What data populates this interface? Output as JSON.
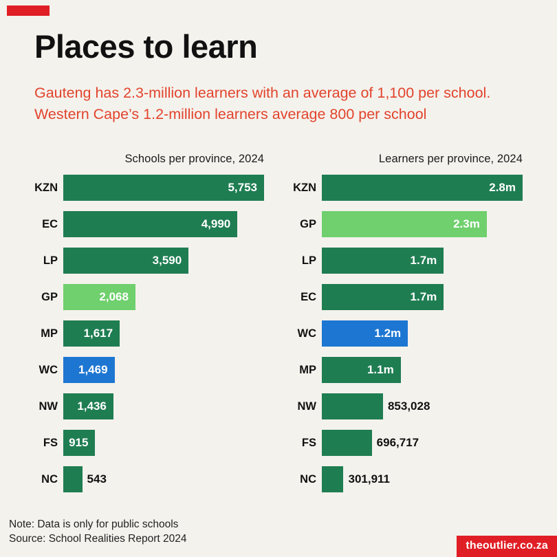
{
  "page": {
    "background": "#f4f2ed",
    "brand_red": "#e01e25",
    "subtitle_red": "#e2432c",
    "bar_green": "#1f7d52",
    "bar_light_green": "#6fd06d",
    "bar_blue": "#1d76d2"
  },
  "header": {
    "title": "Places to learn",
    "subtitle": "Gauteng has 2.3-million learners with an average of 1,100 per school. Western Cape’s 1.2-million learners average 800 per school"
  },
  "chart_data": [
    {
      "type": "bar",
      "orientation": "horizontal",
      "title": "Schools per province, 2024",
      "categories": [
        "KZN",
        "EC",
        "LP",
        "GP",
        "MP",
        "WC",
        "NW",
        "FS",
        "NC"
      ],
      "values": [
        5753,
        4990,
        3590,
        2068,
        1617,
        1469,
        1436,
        915,
        543
      ],
      "labels": [
        "5,753",
        "4,990",
        "3,590",
        "2,068",
        "1,617",
        "1,469",
        "1,436",
        "915",
        "543"
      ],
      "colors": [
        "#1f7d52",
        "#1f7d52",
        "#1f7d52",
        "#6fd06d",
        "#1f7d52",
        "#1d76d2",
        "#1f7d52",
        "#1f7d52",
        "#1f7d52"
      ],
      "label_inside": [
        true,
        true,
        true,
        true,
        true,
        true,
        true,
        true,
        false
      ],
      "xmax": 5753,
      "grid": false,
      "legend": false
    },
    {
      "type": "bar",
      "orientation": "horizontal",
      "title": "Learners per province, 2024",
      "categories": [
        "KZN",
        "GP",
        "LP",
        "EC",
        "WC",
        "MP",
        "NW",
        "FS",
        "NC"
      ],
      "values": [
        2800000,
        2300000,
        1700000,
        1700000,
        1200000,
        1100000,
        853028,
        696717,
        301911
      ],
      "labels": [
        "2.8m",
        "2.3m",
        "1.7m",
        "1.7m",
        "1.2m",
        "1.1m",
        "853,028",
        "696,717",
        "301,911"
      ],
      "colors": [
        "#1f7d52",
        "#6fd06d",
        "#1f7d52",
        "#1f7d52",
        "#1d76d2",
        "#1f7d52",
        "#1f7d52",
        "#1f7d52",
        "#1f7d52"
      ],
      "label_inside": [
        true,
        true,
        true,
        true,
        true,
        true,
        false,
        false,
        false
      ],
      "xmax": 2800000,
      "grid": false,
      "legend": false
    }
  ],
  "footer": {
    "note": "Note: Data is only for public schools",
    "source": "Source: School Realities Report 2024",
    "brand": "theoutlier.co.za"
  }
}
